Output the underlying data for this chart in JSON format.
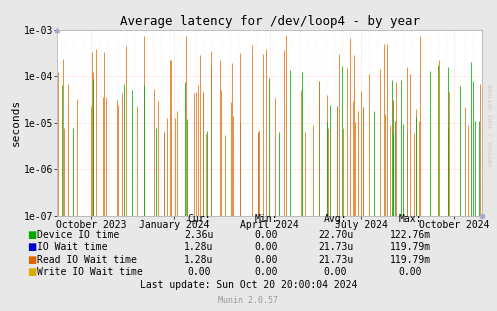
{
  "title": "Average latency for /dev/loop4 - by year",
  "ylabel": "seconds",
  "background_color": "#e8e8e8",
  "plot_bg_color": "#ffffff",
  "ylim_min": 1e-07,
  "ylim_max": 0.001,
  "legend_entries": [
    {
      "label": "Device IO time",
      "color": "#00aa00"
    },
    {
      "label": "IO Wait time",
      "color": "#0000cc"
    },
    {
      "label": "Read IO Wait time",
      "color": "#dd6600"
    },
    {
      "label": "Write IO Wait time",
      "color": "#ddaa00"
    }
  ],
  "table_headers": [
    "Cur:",
    "Min:",
    "Avg:",
    "Max:"
  ],
  "table_rows": [
    [
      "2.36u",
      "0.00",
      "22.70u",
      "122.76m"
    ],
    [
      "1.28u",
      "0.00",
      "21.73u",
      "119.79m"
    ],
    [
      "1.28u",
      "0.00",
      "21.73u",
      "119.79m"
    ],
    [
      "0.00",
      "0.00",
      "0.00",
      "0.00"
    ]
  ],
  "footer": "Last update: Sun Oct 20 20:00:04 2024",
  "munin_version": "Munin 2.0.57",
  "watermark": "RRDTOOL / TOBI OETIKER",
  "xtick_labels": [
    "October 2023",
    "January 2024",
    "April 2024",
    "July 2024",
    "October 2024"
  ],
  "xtick_positions": [
    0.08,
    0.275,
    0.5,
    0.715,
    0.935
  ],
  "ytick_labels": [
    "1e-07",
    "1e-06",
    "1e-05",
    "1e-04",
    "1e-03"
  ],
  "ytick_values": [
    1e-07,
    1e-06,
    1e-05,
    0.0001,
    0.001
  ],
  "grid_color": "#ffbbbb",
  "border_color": "#aaaaaa",
  "corner_color": "#aaaacc"
}
